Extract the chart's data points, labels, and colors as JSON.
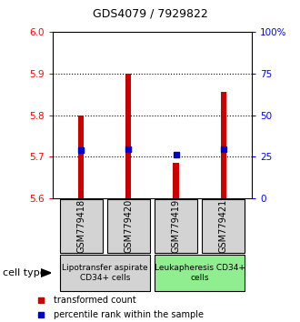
{
  "title": "GDS4079 / 7929822",
  "samples": [
    "GSM779418",
    "GSM779420",
    "GSM779419",
    "GSM779421"
  ],
  "red_values": [
    5.8,
    5.9,
    5.685,
    5.855
  ],
  "blue_values": [
    5.715,
    5.718,
    5.705,
    5.717
  ],
  "ymin": 5.6,
  "ymax": 6.0,
  "yticks_left": [
    5.6,
    5.7,
    5.8,
    5.9,
    6.0
  ],
  "right_tick_positions": [
    5.6,
    5.7,
    5.8,
    5.9,
    6.0
  ],
  "right_tick_labels": [
    "0",
    "25",
    "50",
    "75",
    "100%"
  ],
  "groups": [
    {
      "label": "Lipotransfer aspirate\nCD34+ cells",
      "samples": [
        0,
        1
      ],
      "color": "#d3d3d3"
    },
    {
      "label": "Leukapheresis CD34+\ncells",
      "samples": [
        2,
        3
      ],
      "color": "#90EE90"
    }
  ],
  "cell_type_label": "cell type",
  "legend_red": "transformed count",
  "legend_blue": "percentile rank within the sample",
  "bar_color": "#cc0000",
  "dot_color": "#0000cc",
  "bar_bottom": 5.6,
  "bar_width": 0.12,
  "dot_size": 5,
  "grid_ticks": [
    5.7,
    5.8,
    5.9
  ],
  "bg_color": "#ffffff",
  "sample_box_color_0": "#d3d3d3",
  "sample_box_color_1": "#d3d3d3",
  "sample_box_color_2": "#d3d3d3",
  "sample_box_color_3": "#d3d3d3",
  "title_fontsize": 9,
  "tick_fontsize": 7.5,
  "sample_fontsize": 7,
  "group_fontsize": 6.5,
  "legend_fontsize": 7
}
